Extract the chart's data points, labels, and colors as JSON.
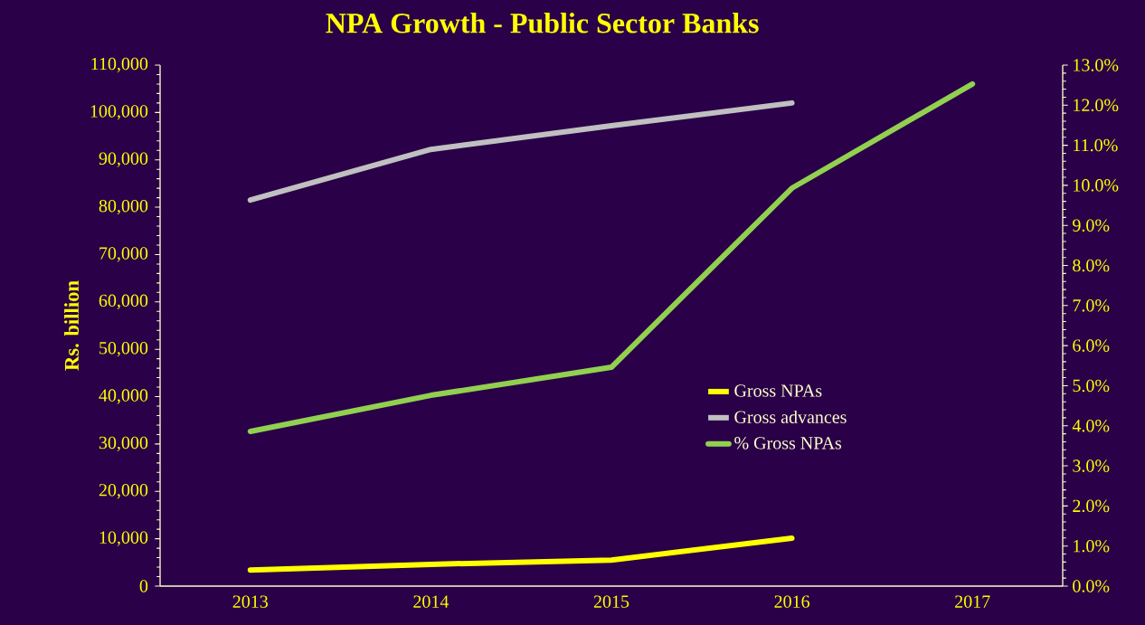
{
  "chart_data": {
    "type": "line",
    "title": "NPA Growth - Public Sector Banks",
    "ylabel": "Rs. billion",
    "categories": [
      "2013",
      "2014",
      "2015",
      "2016",
      "2017"
    ],
    "series": [
      {
        "name": "Gross NPAs",
        "color": "#ffff00",
        "values": [
          3400,
          4600,
          5500,
          10100,
          null
        ]
      },
      {
        "name": "Gross advances",
        "color": "#c0c0c0",
        "values": [
          81500,
          92200,
          97200,
          102000,
          null
        ]
      },
      {
        "name": "% Gross NPAs",
        "color": "#92d050",
        "axis": "y2",
        "values": [
          3.86,
          4.76,
          5.46,
          9.93,
          12.53
        ]
      }
    ],
    "ylim": [
      0,
      110000
    ],
    "yticks": [
      0,
      {
        "value": 10000,
        "label": "10,000"
      },
      {
        "value": 20000,
        "label": "20,000"
      },
      {
        "value": 30000,
        "label": "30,000"
      },
      {
        "value": 40000,
        "label": "40,000"
      },
      {
        "value": 50000,
        "label": "50,000"
      },
      {
        "value": 60000,
        "label": "60,000"
      },
      {
        "value": 70000,
        "label": "70,000"
      },
      {
        "value": 80000,
        "label": "80,000"
      },
      {
        "value": 90000,
        "label": "90,000"
      },
      {
        "value": 100000,
        "label": "100,000"
      },
      {
        "value": 110000,
        "label": "110,000"
      }
    ],
    "y2lim": [
      0,
      13
    ],
    "y2ticks": [
      {
        "value": 0,
        "label": "0.0%"
      },
      {
        "value": 1,
        "label": "1.0%"
      },
      {
        "value": 2,
        "label": "2.0%"
      },
      {
        "value": 3,
        "label": "3.0%"
      },
      {
        "value": 4,
        "label": "4.0%"
      },
      {
        "value": 5,
        "label": "5.0%"
      },
      {
        "value": 6,
        "label": "6.0%"
      },
      {
        "value": 7,
        "label": "7.0%"
      },
      {
        "value": 8,
        "label": "8.0%"
      },
      {
        "value": 9,
        "label": "9.0%"
      },
      {
        "value": 10,
        "label": "10.0%"
      },
      {
        "value": 11,
        "label": "11.0%"
      },
      {
        "value": 12,
        "label": "12.0%"
      },
      {
        "value": 13,
        "label": "13.0%"
      }
    ],
    "legend": "right",
    "marker": "none",
    "line_style": "solid"
  }
}
